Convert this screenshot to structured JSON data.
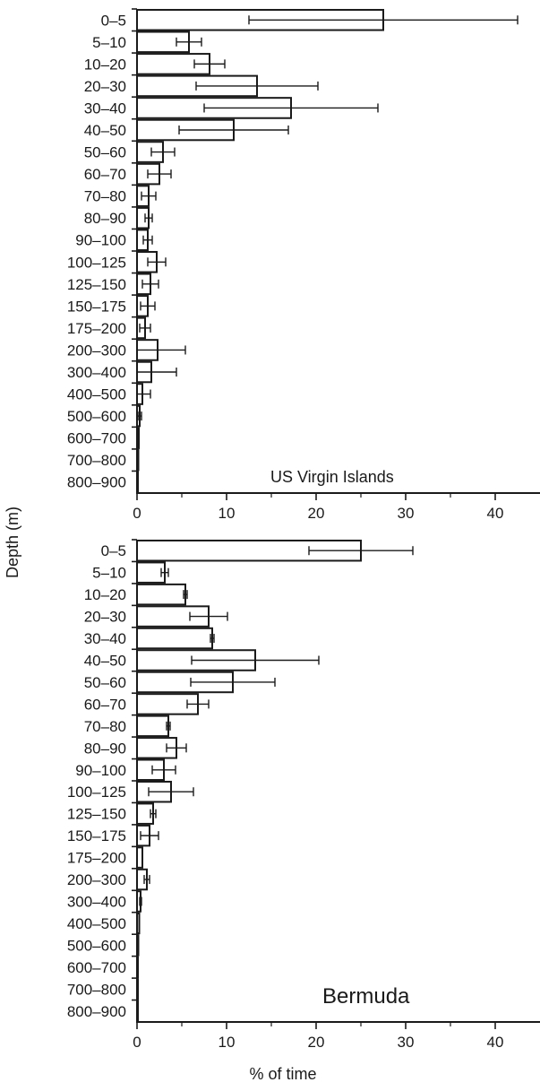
{
  "shared_ylabel": "Depth (m)",
  "chart_data": [
    {
      "type": "bar",
      "orientation": "horizontal",
      "panel_label": "US Virgin Islands",
      "categories": [
        "0–5",
        "5–10",
        "10–20",
        "20–30",
        "30–40",
        "40–50",
        "50–60",
        "60–70",
        "70–80",
        "80–90",
        "90–100",
        "100–125",
        "125–150",
        "150–175",
        "175–200",
        "200–300",
        "300–400",
        "400–500",
        "500–600",
        "600–700",
        "700–800",
        "800–900"
      ],
      "values": [
        27.5,
        5.8,
        8.1,
        13.4,
        17.2,
        10.8,
        2.9,
        2.5,
        1.3,
        1.3,
        1.2,
        2.2,
        1.5,
        1.2,
        0.9,
        2.3,
        1.6,
        0.6,
        0.3,
        0.2,
        0.15,
        0.1
      ],
      "errors": [
        15.0,
        1.4,
        1.7,
        6.8,
        9.7,
        6.1,
        1.3,
        1.3,
        0.8,
        0.4,
        0.5,
        1.0,
        0.9,
        0.8,
        0.6,
        3.1,
        2.8,
        0.9,
        0.2,
        0,
        0,
        0
      ],
      "xlabel": "",
      "ylabel": "Depth (m)",
      "xlim": [
        0,
        45
      ],
      "xticks": [
        0,
        10,
        20,
        30,
        40
      ],
      "grid": false,
      "bar_color": "#ffffff",
      "edge_color": "#1a1a1a"
    },
    {
      "type": "bar",
      "orientation": "horizontal",
      "panel_label": "Bermuda",
      "categories": [
        "0–5",
        "5–10",
        "10–20",
        "20–30",
        "30–40",
        "40–50",
        "50–60",
        "60–70",
        "70–80",
        "80–90",
        "90–100",
        "100–125",
        "125–150",
        "150–175",
        "175–200",
        "200–300",
        "300–400",
        "400–500",
        "500–600",
        "600–700",
        "700–800",
        "800–900"
      ],
      "values": [
        25.0,
        3.1,
        5.4,
        8.0,
        8.4,
        13.2,
        10.7,
        6.8,
        3.5,
        4.4,
        3.0,
        3.8,
        1.8,
        1.4,
        0.6,
        1.1,
        0.4,
        0.25,
        0.15,
        0.1,
        0.1,
        0.1
      ],
      "errors": [
        5.8,
        0.4,
        0.2,
        2.1,
        0.2,
        7.1,
        4.7,
        1.2,
        0.2,
        1.1,
        1.3,
        2.5,
        0.3,
        1.0,
        0,
        0.3,
        0.1,
        0,
        0,
        0,
        0,
        0
      ],
      "xlabel": "% of time",
      "ylabel": "Depth (m)",
      "xlim": [
        0,
        45
      ],
      "xticks": [
        0,
        10,
        20,
        30,
        40
      ],
      "grid": false,
      "bar_color": "#ffffff",
      "edge_color": "#1a1a1a"
    }
  ]
}
